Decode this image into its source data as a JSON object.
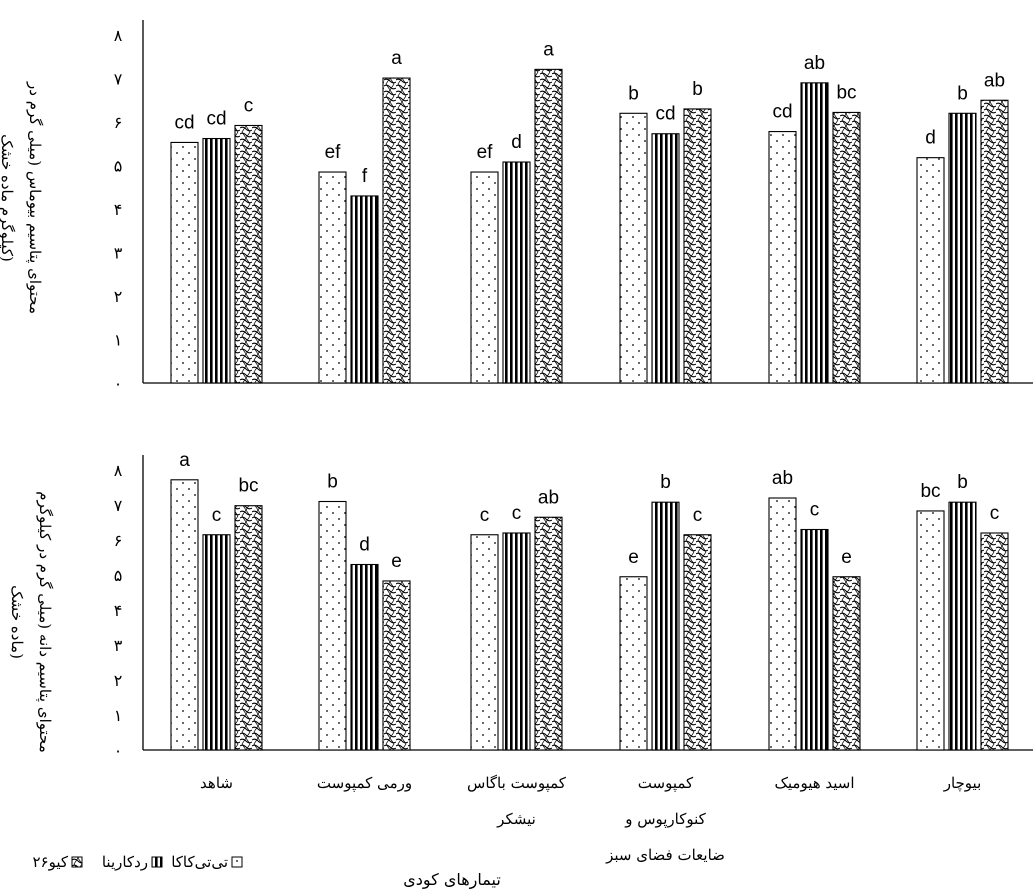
{
  "chart_data": {
    "type": "bar",
    "xlabel": "تیمارهای کودی",
    "categories": [
      [
        "شاهد"
      ],
      [
        "ورمی کمپوست"
      ],
      [
        "کمپوست باگاس",
        "نیشکر"
      ],
      [
        "کمپوست",
        "کنوکارپوس و",
        "ضایعات فضای سبز"
      ],
      [
        "اسید هیومیک"
      ],
      [
        "بیوچار"
      ]
    ],
    "legend": [
      "تی‌تی‌کاکا",
      "ردکارینا",
      "کیو۲۶"
    ],
    "panels": [
      {
        "ylabel": [
          "محتوای پتاسیم بیوماس (میلی گرم در",
          "کیلوگرم ماده خشک)"
        ],
        "ylim": [
          0,
          8
        ],
        "yticks": [
          "۰",
          "۱",
          "۲",
          "۳",
          "۴",
          "۵",
          "۶",
          "۷",
          "۸"
        ],
        "series": [
          {
            "name": "تی‌تی‌کاکا",
            "values": [
              5.53,
              4.85,
              4.85,
              6.2,
              5.78,
              5.18
            ],
            "labels": [
              "cd",
              "ef",
              "ef",
              "b",
              "cd",
              "d"
            ]
          },
          {
            "name": "ردکارینا",
            "values": [
              5.62,
              4.3,
              5.08,
              5.73,
              6.9,
              6.2
            ],
            "labels": [
              "cd",
              "f",
              "d",
              "cd",
              "ab",
              "b"
            ]
          },
          {
            "name": "کیو۲۶",
            "values": [
              5.92,
              7.01,
              7.21,
              6.3,
              6.22,
              6.5
            ],
            "labels": [
              "c",
              "a",
              "a",
              "b",
              "bc",
              "ab"
            ]
          }
        ]
      },
      {
        "ylabel": [
          "محتوای پتاسیم دانه (میلی گرم در کیلوگرم",
          "ماده خشک)"
        ],
        "ylim": [
          0,
          8
        ],
        "yticks": [
          "۰",
          "۱",
          "۲",
          "۳",
          "۴",
          "۵",
          "۶",
          "۷",
          "۸"
        ],
        "series": [
          {
            "name": "تی‌تی‌کاکا",
            "values": [
              7.72,
              7.1,
              6.15,
              4.95,
              7.2,
              6.83
            ],
            "labels": [
              "a",
              "b",
              "c",
              "e",
              "ab",
              "bc"
            ]
          },
          {
            "name": "ردکارینا",
            "values": [
              6.15,
              5.3,
              6.2,
              7.08,
              6.3,
              7.08
            ],
            "labels": [
              "c",
              "d",
              "c",
              "b",
              "c",
              "b"
            ]
          },
          {
            "name": "کیو۲۶",
            "values": [
              6.98,
              4.83,
              6.65,
              6.15,
              4.95,
              6.2
            ],
            "labels": [
              "bc",
              "e",
              "ab",
              "c",
              "e",
              "c"
            ]
          }
        ]
      }
    ]
  }
}
